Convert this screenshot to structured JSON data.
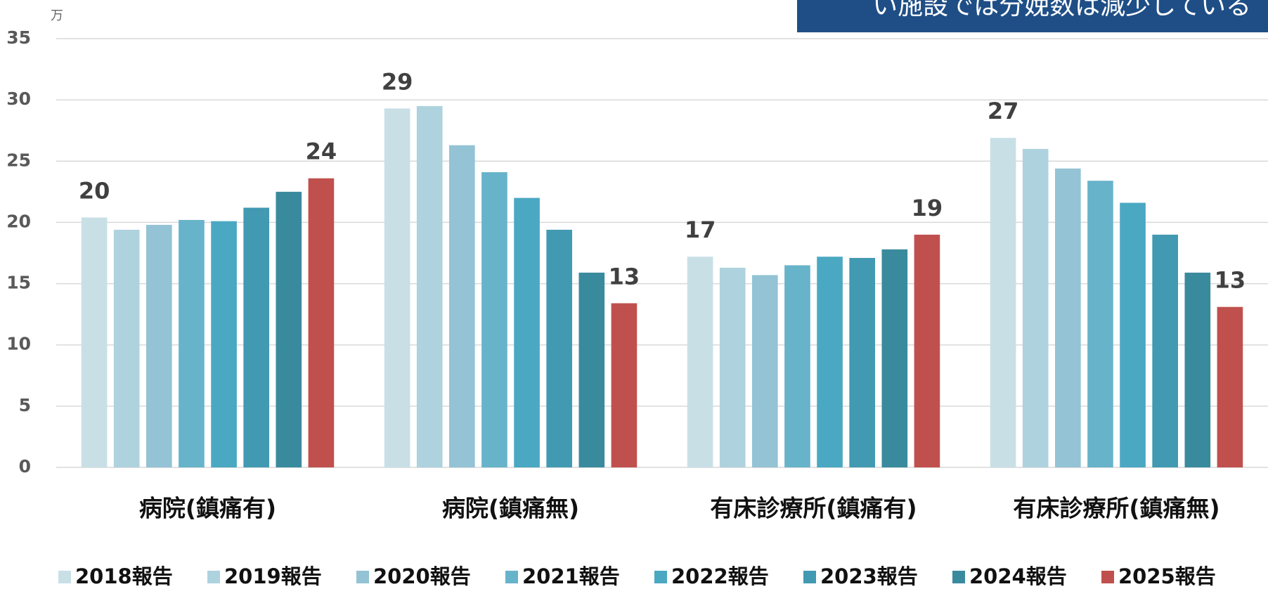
{
  "chart_data": {
    "type": "bar",
    "annotation": "い施設では分娩数は減少している",
    "y_unit": "万",
    "categories": [
      "病院(鎮痛有)",
      "病院(鎮痛無)",
      "有床診療所(鎮痛有)",
      "有床診療所(鎮痛無)"
    ],
    "series": [
      {
        "name": "2018報告",
        "color": "#c8dfe6",
        "values": [
          20.4,
          29.3,
          17.2,
          26.9
        ],
        "value_labels": [
          "20",
          "29",
          "17",
          "27"
        ]
      },
      {
        "name": "2019報告",
        "color": "#aed2de",
        "values": [
          19.4,
          29.5,
          16.3,
          26.0
        ]
      },
      {
        "name": "2020報告",
        "color": "#93c3d4",
        "values": [
          19.8,
          26.3,
          15.7,
          24.4
        ]
      },
      {
        "name": "2021報告",
        "color": "#67b3ca",
        "values": [
          20.2,
          24.1,
          16.5,
          23.4
        ]
      },
      {
        "name": "2022報告",
        "color": "#4aa8c2",
        "values": [
          20.1,
          22.0,
          17.2,
          21.6
        ]
      },
      {
        "name": "2023報告",
        "color": "#4299b2",
        "values": [
          21.2,
          19.4,
          17.1,
          19.0
        ]
      },
      {
        "name": "2024報告",
        "color": "#3a8a9e",
        "values": [
          22.5,
          15.9,
          17.8,
          15.9
        ]
      },
      {
        "name": "2025報告",
        "color": "#c0504d",
        "values": [
          23.6,
          13.4,
          19.0,
          13.1
        ],
        "value_labels": [
          "24",
          "13",
          "19",
          "13"
        ]
      }
    ],
    "ylim": [
      0,
      35
    ],
    "yticks": [
      0,
      5,
      10,
      15,
      20,
      25,
      30,
      35
    ],
    "grid": true,
    "legend": "bottom"
  }
}
